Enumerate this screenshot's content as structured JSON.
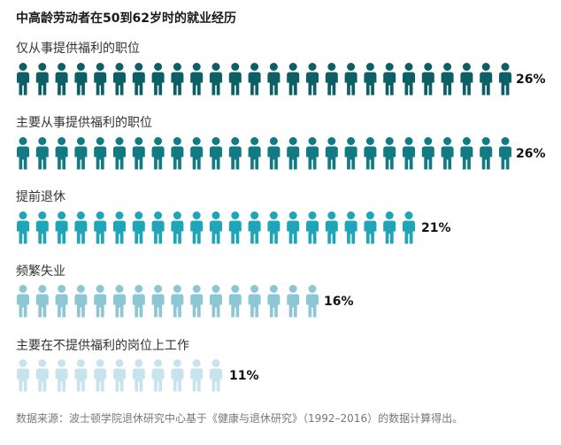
{
  "chart_data": {
    "type": "bar",
    "title": "中高龄劳动者在50到62岁时的就业经历",
    "categories": [
      "仅从事提供福利的职位",
      "主要从事提供福利的职位",
      "提前退休",
      "频繁失业",
      "主要在不提供福利的岗位上工作"
    ],
    "values": [
      26,
      26,
      21,
      16,
      11
    ],
    "value_labels": [
      "26%",
      "26%",
      "21%",
      "16%",
      "11%"
    ],
    "icon": "person-icon",
    "colors": [
      "#0d5f66",
      "#117a82",
      "#1fa5b8",
      "#8dc7d6",
      "#c9e3ed"
    ],
    "legend": "none",
    "grid": false,
    "source": "数据来源：波士顿学院退休研究中心基于《健康与退休研究》（1992–2016）的数据计算得出。"
  }
}
